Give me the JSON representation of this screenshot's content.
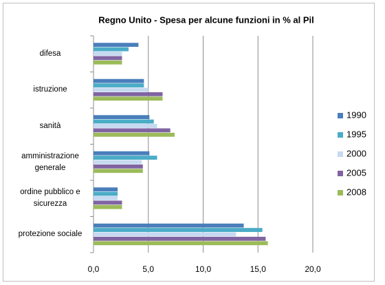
{
  "chart_data": {
    "type": "bar",
    "orientation": "horizontal",
    "title": "Regno Unito - Spesa per alcune funzioni in % al Pil",
    "categories": [
      "difesa",
      "istruzione",
      "sanità",
      "amministrazione generale",
      "ordine pubblico e sicurezza",
      "protezione sociale"
    ],
    "series": [
      {
        "name": "1990",
        "color": "#4a7ebb",
        "values": [
          4.1,
          4.6,
          5.1,
          5.1,
          2.2,
          13.7
        ]
      },
      {
        "name": "1995",
        "color": "#4bacc6",
        "values": [
          3.2,
          4.6,
          5.5,
          5.8,
          2.2,
          15.4
        ]
      },
      {
        "name": "2000",
        "color": "#c6d9f1",
        "values": [
          2.6,
          5.0,
          5.8,
          4.4,
          2.2,
          13.0
        ]
      },
      {
        "name": "2005",
        "color": "#8064a2",
        "values": [
          2.6,
          6.3,
          7.0,
          4.5,
          2.6,
          15.7
        ]
      },
      {
        "name": "2008",
        "color": "#9bbb59",
        "values": [
          2.6,
          6.3,
          7.4,
          4.5,
          2.6,
          15.9
        ]
      }
    ],
    "xlim": [
      0,
      22
    ],
    "xticks": [
      {
        "value": 0,
        "label": "0,0"
      },
      {
        "value": 5,
        "label": "5,0"
      },
      {
        "value": 10,
        "label": "10,0"
      },
      {
        "value": 15,
        "label": "15,0"
      },
      {
        "value": 20,
        "label": "20,0"
      }
    ],
    "grid": true,
    "legend": "right"
  }
}
